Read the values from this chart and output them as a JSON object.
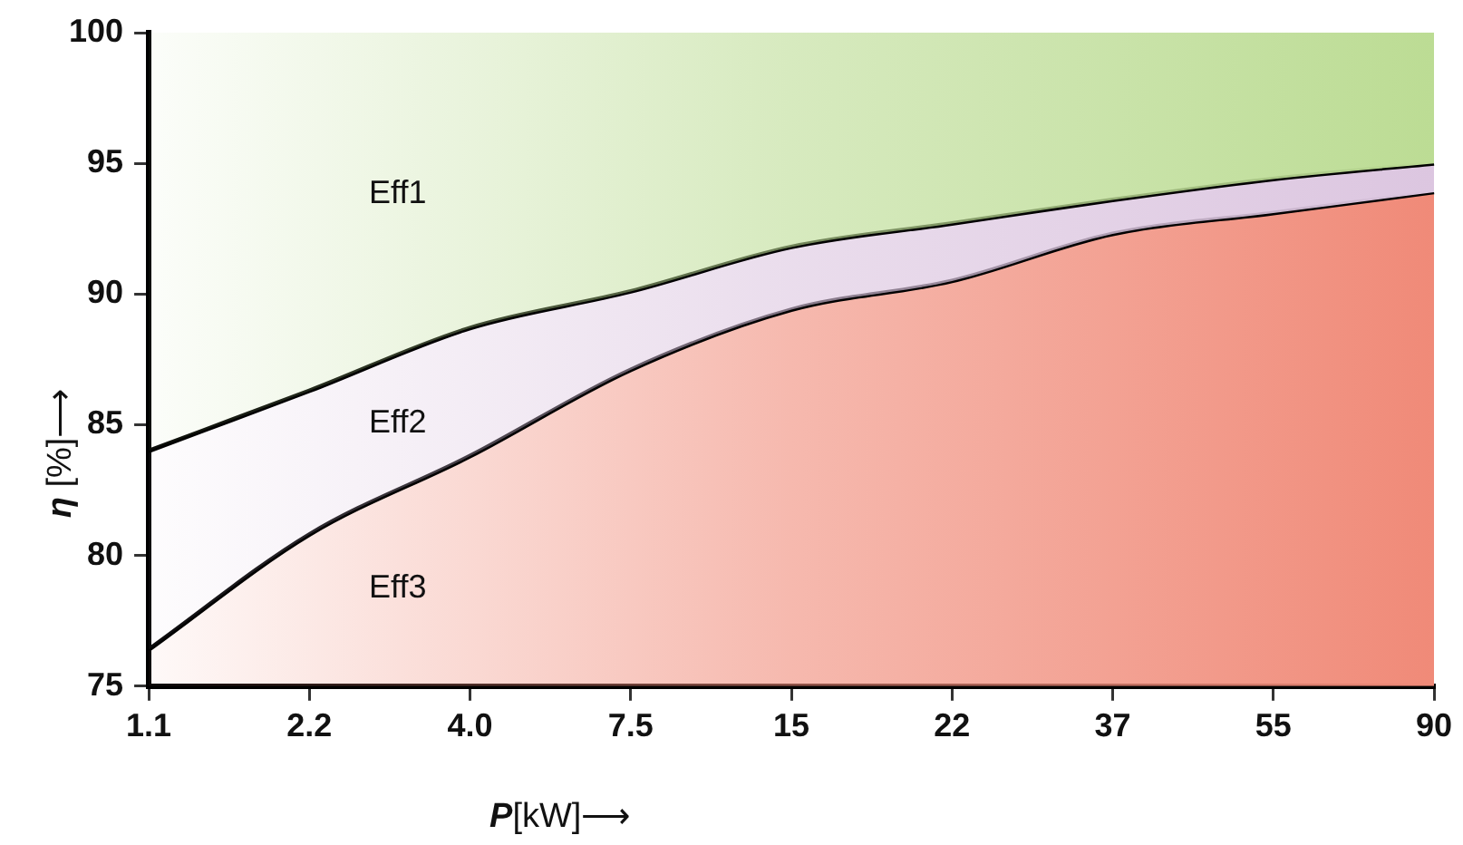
{
  "chart_data": {
    "type": "area",
    "xlabel": "P[kW]⟶",
    "ylabel": "η [%]⟶",
    "categories": [
      "1.1",
      "2.2",
      "4.0",
      "7.5",
      "15",
      "22",
      "37",
      "55",
      "90"
    ],
    "series": [
      {
        "name": "Eff3",
        "color": "#f08a78",
        "values": [
          76.4,
          80.8,
          83.8,
          87.1,
          89.4,
          90.5,
          92.3,
          93.1,
          93.9
        ]
      },
      {
        "name": "Eff2",
        "color": "#dcc6e0",
        "values": [
          84.0,
          86.3,
          88.7,
          90.1,
          91.8,
          92.7,
          93.6,
          94.4,
          95.0
        ]
      },
      {
        "name": "Eff1",
        "color": "#bcdc94",
        "values": [
          100,
          100,
          100,
          100,
          100,
          100,
          100,
          100,
          100
        ]
      }
    ],
    "ylim": [
      75,
      100
    ],
    "yticks": [
      75,
      80,
      85,
      90,
      95,
      100
    ],
    "grid": false,
    "legend": false
  }
}
